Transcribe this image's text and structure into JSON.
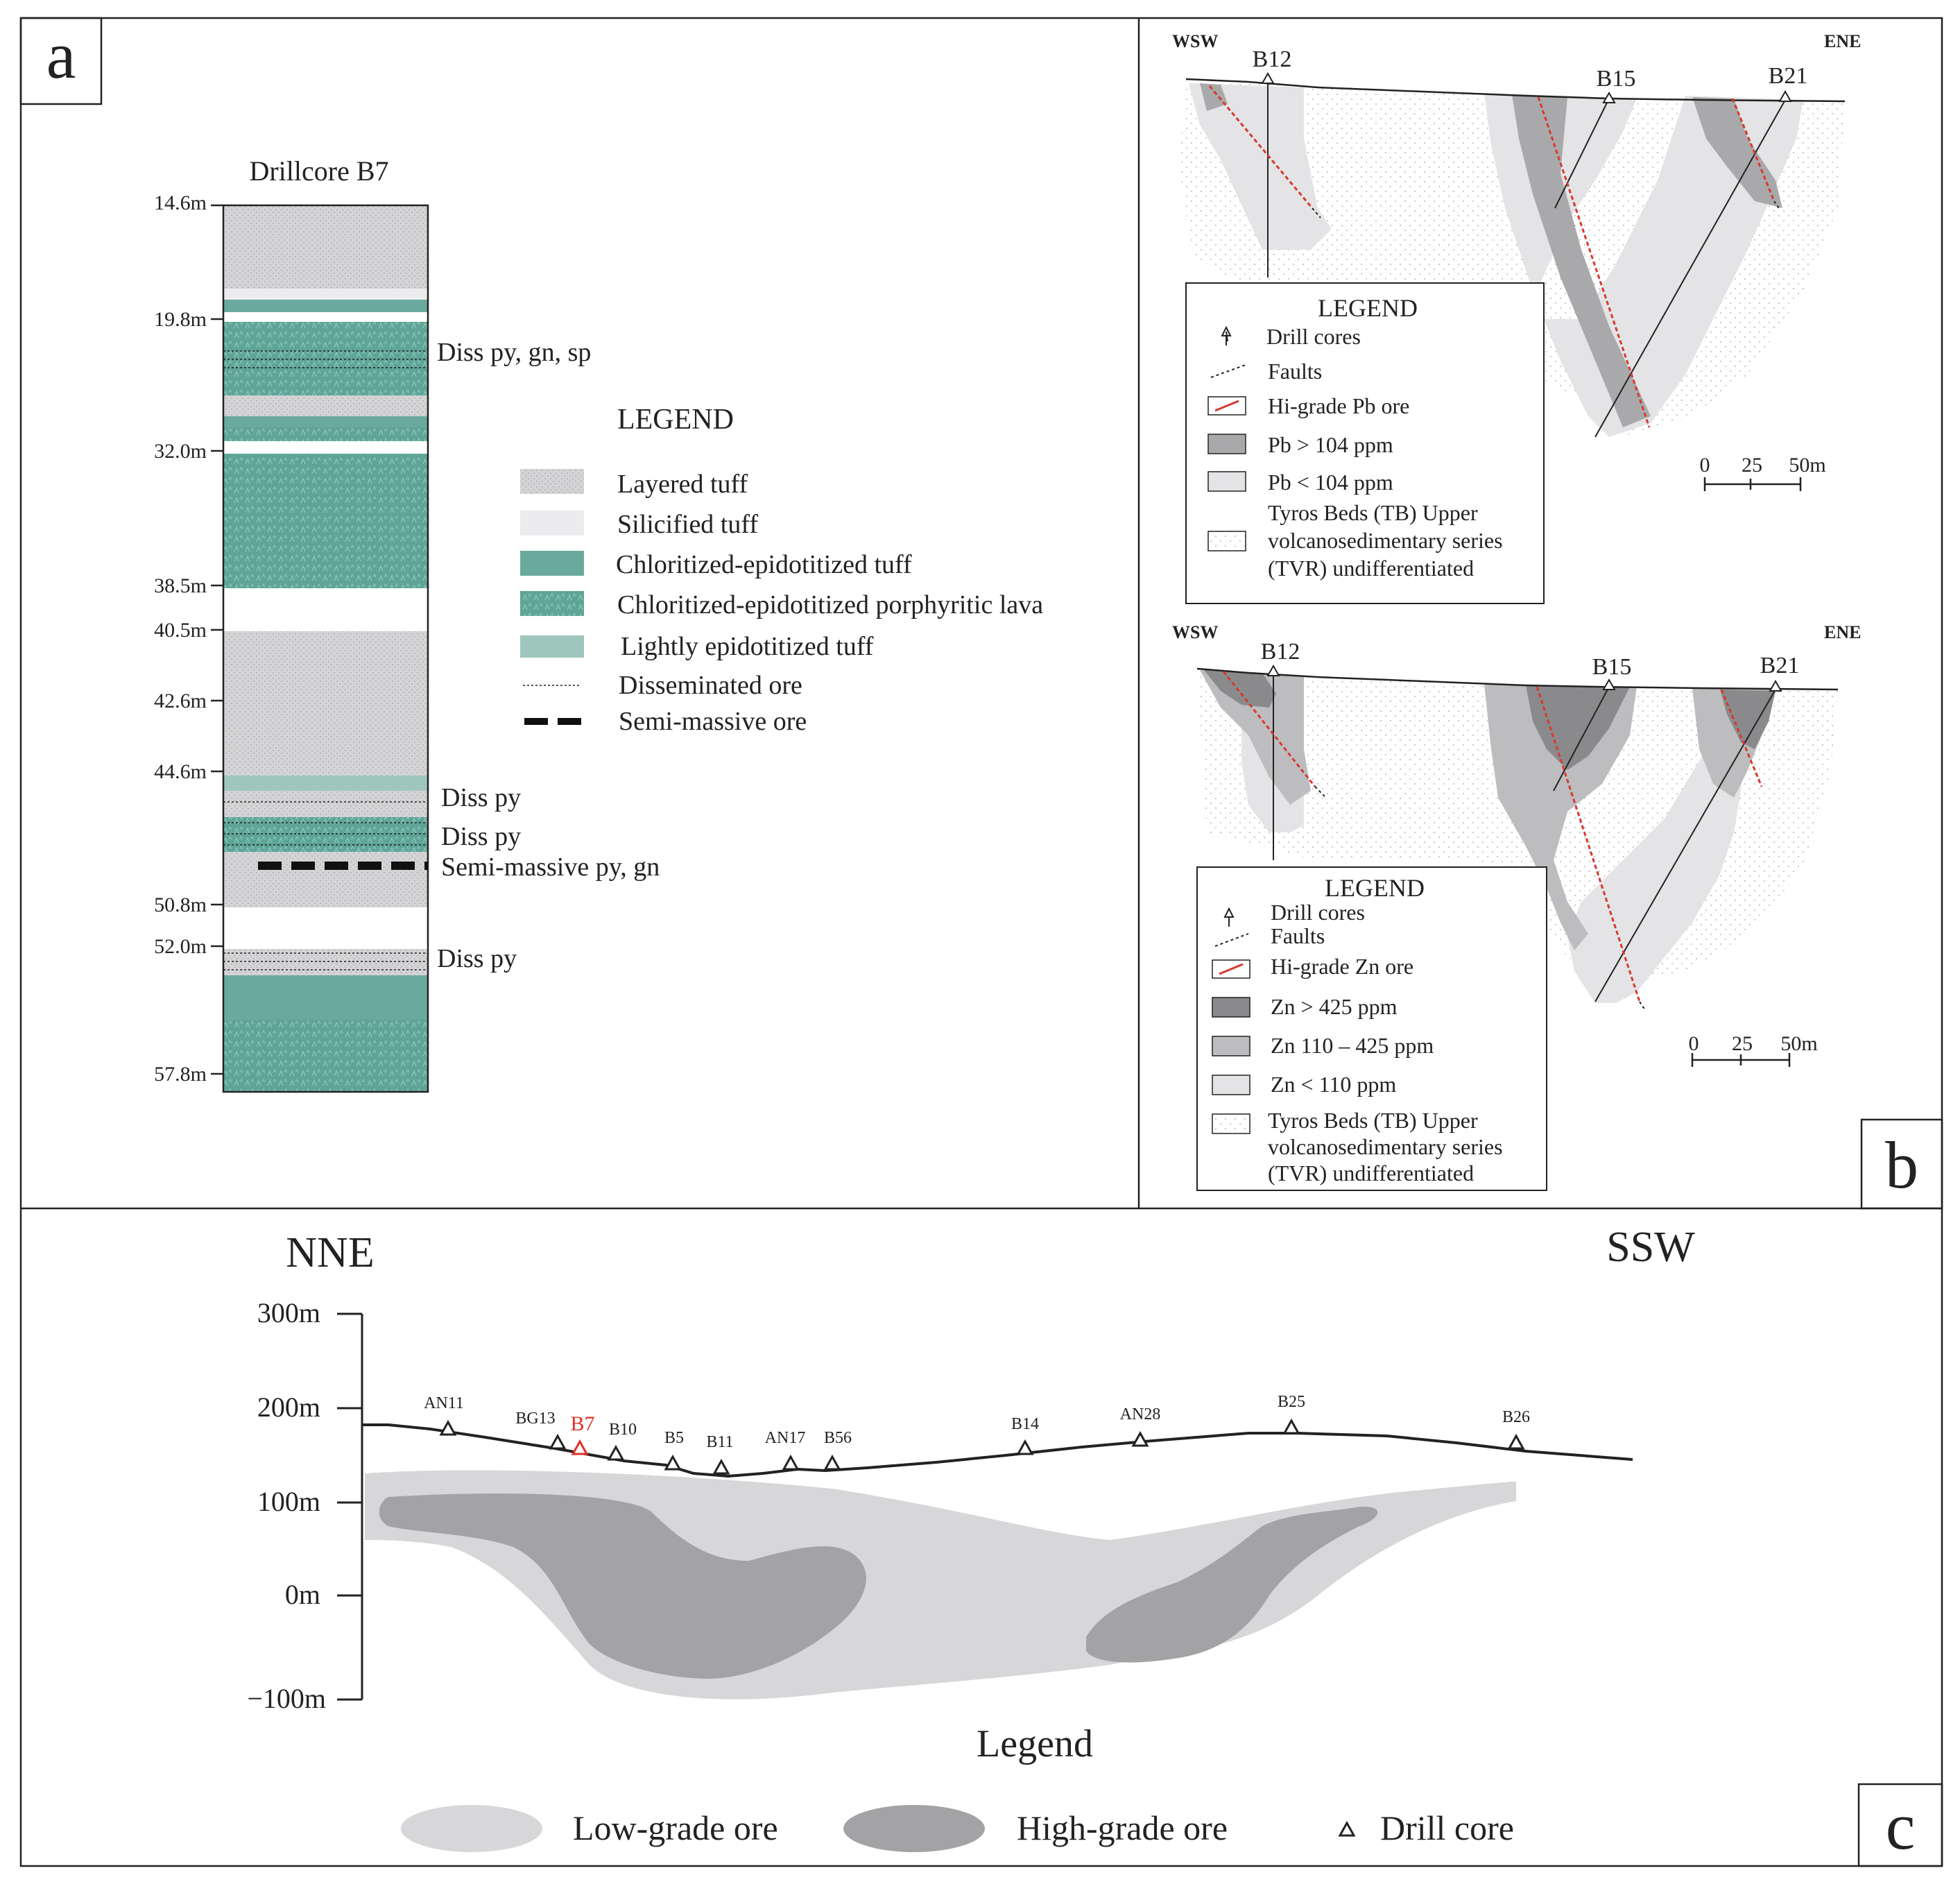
{
  "panel_a": {
    "letter": "a",
    "title": "Drillcore B7",
    "depth_labels": [
      "14.6m",
      "19.8m",
      "32.0m",
      "38.5m",
      "40.5m",
      "42.6m",
      "44.6m",
      "50.8m",
      "52.0m",
      "57.8m"
    ],
    "annotations": [
      "Diss py, gn, sp",
      "Diss py",
      "Diss py",
      "Semi-massive py, gn",
      "Diss py"
    ],
    "legend": {
      "title": "LEGEND",
      "items": [
        "Layered tuff",
        "Silicified tuff",
        "Chloritized-epidotitized tuff",
        "Chloritized-epidotitized porphyritic lava",
        "Lightly epidotitized tuff",
        "Disseminated ore",
        "Semi-massive ore"
      ]
    },
    "colors": {
      "layered": "#d4d4d6",
      "silicified": "#ececee",
      "chlorite": "#6aaa9e",
      "lava": "#5fa597",
      "light_epi": "#9fc6bc"
    }
  },
  "panel_b": {
    "letter": "b",
    "top": {
      "dir_left": "WSW",
      "dir_right": "ENE",
      "cores": [
        "B12",
        "B15",
        "B21"
      ],
      "legend": {
        "title": "LEGEND",
        "items": [
          "Drill cores",
          "Faults",
          "Hi-grade Pb ore",
          "Pb > 104 ppm",
          "Pb < 104 ppm"
        ],
        "tb": [
          "Tyros Beds (TB) Upper",
          "volcanosedimentary series",
          "(TVR) undifferentiated"
        ]
      },
      "scale": [
        "0",
        "25",
        "50m"
      ]
    },
    "bottom": {
      "dir_left": "WSW",
      "dir_right": "ENE",
      "cores": [
        "B12",
        "B15",
        "B21"
      ],
      "legend": {
        "title": "LEGEND",
        "items": [
          "Drill cores",
          "Faults",
          "Hi-grade Zn ore",
          "Zn > 425 ppm",
          "Zn 110 – 425 ppm",
          "Zn < 110 ppm"
        ],
        "tb": [
          "Tyros Beds (TB) Upper",
          "volcanosedimentary series",
          "(TVR) undifferentiated"
        ]
      },
      "scale": [
        "0",
        "25",
        "50m"
      ]
    }
  },
  "panel_c": {
    "letter": "c",
    "dir_left": "NNE",
    "dir_right": "SSW",
    "elevation_labels": [
      "300m",
      "200m",
      "100m",
      "0m",
      "−100m"
    ],
    "cores": [
      "AN11",
      "BG13",
      "B7",
      "B10",
      "B5",
      "B11",
      "AN17",
      "B56",
      "B14",
      "AN28",
      "B25",
      "B26"
    ],
    "highlight_core": "B7",
    "legend": {
      "title": "Legend",
      "items": [
        "Low-grade ore",
        "High-grade ore",
        "Drill core"
      ]
    },
    "colors": {
      "low": "#d7d7d9",
      "high": "#a3a3a5",
      "highlight": "#e03025"
    }
  }
}
